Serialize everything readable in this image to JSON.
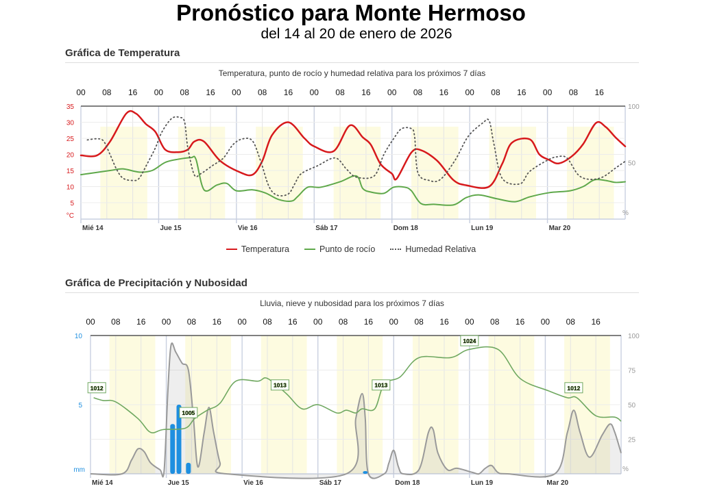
{
  "header": {
    "title": "Pronóstico para Monte Hermoso",
    "subtitle": "del 14 al 20 de enero de 2026"
  },
  "colors": {
    "temperature": "#d7191c",
    "dewpoint": "#5ea84a",
    "humidity": "#555555",
    "rain": "#1e8fe0",
    "clouds": "#999999",
    "pressure": "#6fa860",
    "day_band": "#fdfbe0"
  },
  "chart_data": [
    {
      "type": "line",
      "section_title": "Gráfica de Temperatura",
      "title": "Temperatura, punto de rocío y humedad relativa para los próximos 7 días",
      "x_unit": "hours since Mié 14 00:00",
      "xlim": [
        0,
        168
      ],
      "top_ticks": [
        "00",
        "08",
        "16",
        "00",
        "08",
        "16",
        "00",
        "08",
        "16",
        "00",
        "08",
        "16",
        "00",
        "08",
        "16",
        "00",
        "08",
        "16",
        "00",
        "08",
        "16"
      ],
      "day_labels": [
        "Mié 14",
        "Jue 15",
        "Vie 16",
        "Sáb 17",
        "Dom 18",
        "Lun 19",
        "Mar 20"
      ],
      "ylabel": "°C",
      "ylim": [
        0,
        35
      ],
      "yticks": [
        "5",
        "10",
        "15",
        "20",
        "25",
        "30",
        "35"
      ],
      "y2label": "%",
      "y2lim": [
        0,
        100
      ],
      "y2ticks": [
        "50",
        "100"
      ],
      "legend": [
        "Temperatura",
        "Punto de rocío",
        "Humedad Relativa"
      ],
      "series": [
        {
          "name": "Temperatura",
          "axis": "left",
          "points": [
            [
              0,
              19.7
            ],
            [
              5,
              19.7
            ],
            [
              9,
              24
            ],
            [
              14,
              32.7
            ],
            [
              17,
              32.7
            ],
            [
              20,
              29.5
            ],
            [
              23,
              27
            ],
            [
              26,
              21.5
            ],
            [
              30,
              20.7
            ],
            [
              33,
              21.5
            ],
            [
              35,
              24
            ],
            [
              38,
              24
            ],
            [
              43,
              18
            ],
            [
              49,
              14.5
            ],
            [
              53,
              13.7
            ],
            [
              56,
              18
            ],
            [
              59,
              26
            ],
            [
              64,
              30
            ],
            [
              69,
              25
            ],
            [
              72,
              22.5
            ],
            [
              78,
              21
            ],
            [
              83,
              29
            ],
            [
              87,
              25.3
            ],
            [
              89.5,
              23
            ],
            [
              92.5,
              17
            ],
            [
              96,
              14
            ],
            [
              97.5,
              12.5
            ],
            [
              102,
              20.6
            ],
            [
              105,
              21.3
            ],
            [
              110,
              18
            ],
            [
              115,
              12
            ],
            [
              119,
              10.4
            ],
            [
              126,
              10
            ],
            [
              130,
              17
            ],
            [
              133,
              23.6
            ],
            [
              138.5,
              24.7
            ],
            [
              141.5,
              20
            ],
            [
              144.5,
              18.3
            ],
            [
              147.5,
              17.2
            ],
            [
              151.5,
              19.4
            ],
            [
              155,
              23.2
            ],
            [
              159,
              29.8
            ],
            [
              162,
              28.5
            ],
            [
              165,
              25.3
            ],
            [
              168,
              22.5
            ]
          ]
        },
        {
          "name": "Punto de rocío",
          "axis": "left",
          "points": [
            [
              0,
              13.7
            ],
            [
              9,
              15
            ],
            [
              13,
              15.5
            ],
            [
              18,
              14.5
            ],
            [
              22,
              15
            ],
            [
              26,
              17.5
            ],
            [
              30,
              18.5
            ],
            [
              34,
              19
            ],
            [
              35.5,
              18.5
            ],
            [
              38,
              9
            ],
            [
              42,
              10.5
            ],
            [
              45,
              11
            ],
            [
              48,
              8.7
            ],
            [
              53,
              9
            ],
            [
              57,
              8
            ],
            [
              61,
              6
            ],
            [
              65,
              5.5
            ],
            [
              67,
              7
            ],
            [
              70,
              9.8
            ],
            [
              74,
              9.8
            ],
            [
              80,
              11.5
            ],
            [
              85,
              13.3
            ],
            [
              87,
              9.4
            ],
            [
              89.5,
              8.3
            ],
            [
              93.5,
              7.9
            ],
            [
              96.5,
              9.8
            ],
            [
              100,
              9.8
            ],
            [
              102,
              8.7
            ],
            [
              105,
              4.7
            ],
            [
              109,
              4.5
            ],
            [
              115,
              4.3
            ],
            [
              119,
              6.6
            ],
            [
              123,
              7.4
            ],
            [
              128.5,
              6.2
            ],
            [
              134,
              5.3
            ],
            [
              138.5,
              6.8
            ],
            [
              144.5,
              8.1
            ],
            [
              151,
              8.7
            ],
            [
              155,
              10
            ],
            [
              158.5,
              12.1
            ],
            [
              162,
              11.9
            ],
            [
              165,
              11.3
            ],
            [
              168,
              11.5
            ]
          ]
        },
        {
          "name": "Humedad Relativa",
          "axis": "right",
          "points": [
            [
              2,
              70
            ],
            [
              5,
              71
            ],
            [
              7,
              69
            ],
            [
              9,
              57
            ],
            [
              11,
              44
            ],
            [
              13,
              36
            ],
            [
              16,
              34
            ],
            [
              18,
              36
            ],
            [
              20.5,
              49
            ],
            [
              23,
              63
            ],
            [
              25,
              77
            ],
            [
              28,
              89
            ],
            [
              30.5,
              90
            ],
            [
              32,
              86
            ],
            [
              33,
              63
            ],
            [
              35,
              39
            ],
            [
              37,
              40
            ],
            [
              40.5,
              47
            ],
            [
              44,
              54
            ],
            [
              47,
              66
            ],
            [
              50,
              71
            ],
            [
              53,
              69
            ],
            [
              55.5,
              51
            ],
            [
              58,
              29
            ],
            [
              60.5,
              21
            ],
            [
              64,
              22
            ],
            [
              66,
              31
            ],
            [
              68,
              40
            ],
            [
              73,
              47
            ],
            [
              78.5,
              54
            ],
            [
              82,
              44
            ],
            [
              85,
              37
            ],
            [
              90.5,
              38
            ],
            [
              93.5,
              57
            ],
            [
              96.5,
              71
            ],
            [
              99,
              80
            ],
            [
              102,
              80
            ],
            [
              103,
              73
            ],
            [
              104,
              41
            ],
            [
              107.5,
              34
            ],
            [
              111,
              35
            ],
            [
              115.5,
              52
            ],
            [
              119.5,
              73
            ],
            [
              124,
              85
            ],
            [
              126,
              87
            ],
            [
              127.5,
              66
            ],
            [
              130,
              36
            ],
            [
              135.5,
              31
            ],
            [
              138.5,
              42
            ],
            [
              144,
              52
            ],
            [
              147,
              55
            ],
            [
              150,
              54
            ],
            [
              153.5,
              39
            ],
            [
              157,
              35
            ],
            [
              161,
              37
            ],
            [
              165,
              45
            ],
            [
              168,
              51
            ]
          ]
        }
      ]
    },
    {
      "type": "area",
      "section_title": "Gráfica de Precipitación y Nubosidad",
      "title": "Lluvia, nieve y nubosidad para los próximos 7 días",
      "x_unit": "hours since Mié 14 00:00",
      "xlim": [
        0,
        168
      ],
      "top_ticks": [
        "00",
        "08",
        "16",
        "00",
        "08",
        "16",
        "00",
        "08",
        "16",
        "00",
        "08",
        "16",
        "00",
        "08",
        "16",
        "00",
        "08",
        "16",
        "00",
        "08",
        "16"
      ],
      "day_labels": [
        "Mié 14",
        "Jue 15",
        "Vie 16",
        "Sáb 17",
        "Dom 18",
        "Lun 19",
        "Mar 20"
      ],
      "ylabel": "mm",
      "ylim": [
        0,
        10
      ],
      "yticks": [
        "5",
        "10"
      ],
      "y2label": "%",
      "y2lim": [
        0,
        100
      ],
      "y2ticks": [
        "25",
        "50",
        "75",
        "100"
      ],
      "rain_mm": [
        [
          26,
          3.6
        ],
        [
          28,
          5
        ],
        [
          31,
          0.8
        ],
        [
          87,
          0.1
        ]
      ],
      "cloud_cover_pct": [
        [
          0,
          0
        ],
        [
          10,
          0
        ],
        [
          13,
          10
        ],
        [
          15,
          18
        ],
        [
          17,
          16
        ],
        [
          19,
          8
        ],
        [
          22,
          3
        ],
        [
          23.3,
          2
        ],
        [
          24.5,
          60
        ],
        [
          25.5,
          93
        ],
        [
          27,
          88
        ],
        [
          29,
          80
        ],
        [
          31,
          75
        ],
        [
          32.6,
          40
        ],
        [
          34,
          5
        ],
        [
          36,
          30
        ],
        [
          37.5,
          48
        ],
        [
          39,
          30
        ],
        [
          41,
          8
        ],
        [
          43,
          0
        ],
        [
          81,
          0
        ],
        [
          84,
          40
        ],
        [
          86,
          58
        ],
        [
          87,
          40
        ],
        [
          88,
          0
        ],
        [
          93,
          0
        ],
        [
          94.5,
          8
        ],
        [
          96,
          17
        ],
        [
          97.5,
          5
        ],
        [
          99,
          0
        ],
        [
          104,
          3
        ],
        [
          107,
          30
        ],
        [
          108.5,
          32
        ],
        [
          110,
          15
        ],
        [
          113,
          3
        ],
        [
          116,
          4
        ],
        [
          121,
          1
        ],
        [
          123,
          0
        ],
        [
          125,
          4
        ],
        [
          127,
          6
        ],
        [
          129,
          1
        ],
        [
          132,
          0
        ],
        [
          147,
          0
        ],
        [
          151,
          30
        ],
        [
          153,
          46
        ],
        [
          155,
          30
        ],
        [
          158,
          12
        ],
        [
          162,
          28
        ],
        [
          164.5,
          36
        ],
        [
          166,
          30
        ],
        [
          168,
          15
        ]
      ],
      "pressure_line_pct": [
        [
          1,
          55
        ],
        [
          4,
          53
        ],
        [
          8,
          52
        ],
        [
          15,
          40
        ],
        [
          19,
          30
        ],
        [
          23,
          32
        ],
        [
          30,
          33
        ],
        [
          33,
          40
        ],
        [
          37,
          46
        ],
        [
          41,
          51
        ],
        [
          46,
          67
        ],
        [
          53,
          67
        ],
        [
          56,
          69
        ],
        [
          62,
          58
        ],
        [
          67,
          47
        ],
        [
          72,
          50
        ],
        [
          78,
          44
        ],
        [
          81,
          46
        ],
        [
          84,
          44
        ],
        [
          86,
          47
        ],
        [
          90,
          47
        ],
        [
          93,
          65
        ],
        [
          98,
          70
        ],
        [
          104,
          84
        ],
        [
          114,
          84
        ],
        [
          120,
          90
        ],
        [
          129,
          90
        ],
        [
          136,
          69
        ],
        [
          145,
          60
        ],
        [
          151,
          55
        ],
        [
          154,
          55
        ],
        [
          160,
          42
        ],
        [
          166,
          41
        ],
        [
          168,
          38
        ]
      ],
      "pressure_labels": [
        {
          "h": 2,
          "pct": 62,
          "value": "1012"
        },
        {
          "h": 31,
          "pct": 44,
          "value": "1005"
        },
        {
          "h": 60,
          "pct": 64,
          "value": "1013"
        },
        {
          "h": 92,
          "pct": 64,
          "value": "1013"
        },
        {
          "h": 120,
          "pct": 96,
          "value": "1024"
        },
        {
          "h": 153,
          "pct": 62,
          "value": "1012"
        }
      ]
    }
  ]
}
